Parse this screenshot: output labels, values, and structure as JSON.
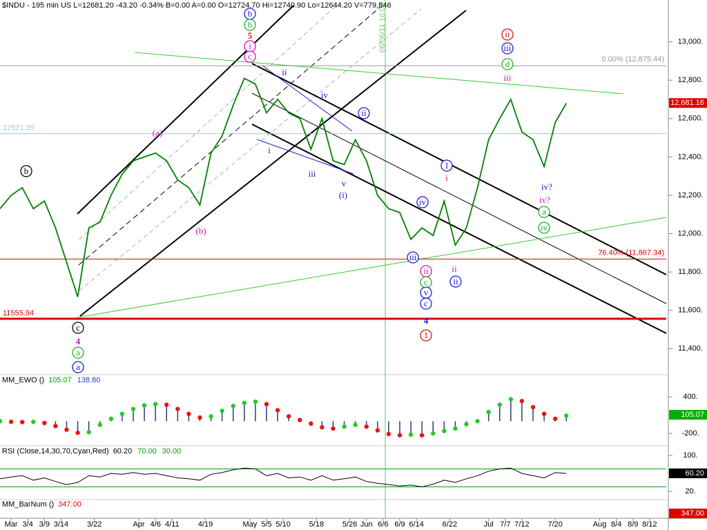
{
  "header": "$INDU - 195 min  US  L=12681.20  -43.20  -0.34%  B=0.00  A=0.00  O=12724.70  Hi=12740.90  Lo=12644.20  V=779,846",
  "chart_data": [
    {
      "type": "line",
      "color": "#008000",
      "x": [
        0,
        2,
        4,
        6,
        8,
        10,
        12,
        14,
        16,
        18,
        20,
        22,
        24,
        26,
        28,
        30,
        32,
        34,
        36,
        38,
        40,
        42,
        44,
        46,
        48,
        50,
        52,
        54,
        56,
        58,
        60,
        62,
        64,
        66,
        68,
        70,
        72,
        74,
        76,
        78,
        80,
        82,
        84,
        86,
        88,
        90,
        92,
        94,
        96,
        98,
        100,
        102
      ],
      "values": [
        12130,
        12200,
        12240,
        12130,
        12170,
        12030,
        11850,
        11670,
        12030,
        12060,
        12200,
        12310,
        12380,
        12400,
        12420,
        12380,
        12280,
        12240,
        12150,
        12420,
        12510,
        12670,
        12810,
        12780,
        12630,
        12700,
        12630,
        12600,
        12440,
        12600,
        12380,
        12360,
        12490,
        12380,
        12200,
        12130,
        12110,
        11970,
        12030,
        11990,
        12170,
        11940,
        12030,
        12240,
        12490,
        12600,
        12700,
        12530,
        12490,
        12350,
        12580,
        12680
      ],
      "xlim": [
        0,
        120
      ],
      "ylim": [
        11275,
        13204
      ],
      "xticks": [
        {
          "value": 2,
          "label": "Mar"
        },
        {
          "value": 5,
          "label": "3/4"
        },
        {
          "value": 8,
          "label": "3/9"
        },
        {
          "value": 11,
          "label": "3/14"
        },
        {
          "value": 17,
          "label": "3/22"
        },
        {
          "value": 25,
          "label": "Apr"
        },
        {
          "value": 28,
          "label": "4/6"
        },
        {
          "value": 31,
          "label": "4/11"
        },
        {
          "value": 37,
          "label": "4/19"
        },
        {
          "value": 45,
          "label": "May"
        },
        {
          "value": 48,
          "label": "5/5"
        },
        {
          "value": 51,
          "label": "5/10"
        },
        {
          "value": 57,
          "label": "5/18"
        },
        {
          "value": 63,
          "label": "5/26"
        },
        {
          "value": 66,
          "label": "Jun"
        },
        {
          "value": 69,
          "label": "6/6"
        },
        {
          "value": 72,
          "label": "6/9"
        },
        {
          "value": 75,
          "label": "6/14"
        },
        {
          "value": 81,
          "label": "6/22"
        },
        {
          "value": 88,
          "label": "Jul"
        },
        {
          "value": 91,
          "label": "7/7"
        },
        {
          "value": 94,
          "label": "7/12"
        },
        {
          "value": 100,
          "label": "7/20"
        },
        {
          "value": 108,
          "label": "Aug"
        },
        {
          "value": 111,
          "label": "8/4"
        },
        {
          "value": 114,
          "label": "8/9"
        },
        {
          "value": 117,
          "label": "8/12"
        }
      ],
      "yticks": [
        {
          "value": 11400,
          "label": "11,400."
        },
        {
          "value": 11600,
          "label": "11,600."
        },
        {
          "value": 11800,
          "label": "11,800."
        },
        {
          "value": 12000,
          "label": "12,000."
        },
        {
          "value": 12200,
          "label": "12,200."
        },
        {
          "value": 12400,
          "label": "12,400."
        },
        {
          "value": 12600,
          "label": "12,600."
        },
        {
          "value": 12800,
          "label": "12,800."
        },
        {
          "value": 13000,
          "label": "13,000."
        }
      ],
      "levels": [
        {
          "value": 12875.44,
          "label": "0.00% (12,875.44)",
          "color": "#999999",
          "side": "right",
          "style": "thin"
        },
        {
          "value": 11867.34,
          "label": "76.40% (11,867.34)",
          "color": "#e00000",
          "side": "right",
          "style": "thin"
        },
        {
          "value": 12521.35,
          "label": "12521.35",
          "color": "#9fc5e8",
          "side": "left",
          "style": "thin"
        },
        {
          "value": 11555.94,
          "label": "11555.94",
          "color": "#e00000",
          "side": "left",
          "style": "thick"
        }
      ],
      "last_label": {
        "value": 12681.16,
        "label": "12,681.16",
        "color": "#e00000"
      },
      "marker_label": "06/06/11 10:00",
      "annotations": [
        "b",
        "b",
        "5",
        "i",
        "c",
        "(a)",
        "b",
        "(b)",
        "ii",
        "iv",
        "i",
        "iii",
        "v",
        "(i)",
        "ii",
        "c",
        "4",
        "a",
        "a",
        "iv",
        "iii",
        "ii",
        "c",
        "v",
        "c",
        "4",
        "1",
        "1",
        "i",
        "ii",
        "ii",
        "ii",
        "iii",
        "d",
        "iii",
        "iv?",
        "iv?",
        "a",
        "iv"
      ]
    },
    {
      "type": "bar",
      "title": "MM_EWO ()",
      "bar_color": "#2a3a80",
      "up_color": "#22cc22",
      "down_color": "#ee1111",
      "x": [
        0,
        2,
        4,
        6,
        8,
        10,
        12,
        14,
        16,
        18,
        20,
        22,
        24,
        26,
        28,
        30,
        32,
        34,
        36,
        38,
        40,
        42,
        44,
        46,
        48,
        50,
        52,
        54,
        56,
        58,
        60,
        62,
        64,
        66,
        68,
        70,
        72,
        74,
        76,
        78,
        80,
        82,
        84,
        86,
        88,
        90,
        92,
        94,
        96,
        98,
        100,
        102
      ],
      "values": [
        0,
        -10,
        -15,
        -10,
        -30,
        -80,
        -140,
        -190,
        -180,
        -60,
        40,
        120,
        200,
        260,
        280,
        270,
        200,
        120,
        60,
        80,
        170,
        250,
        300,
        320,
        280,
        180,
        80,
        20,
        -40,
        -100,
        -120,
        -90,
        -60,
        -90,
        -150,
        -210,
        -230,
        -220,
        -230,
        -200,
        -160,
        -120,
        -50,
        0,
        150,
        270,
        360,
        330,
        230,
        120,
        40,
        90
      ],
      "xlim": [
        0,
        120
      ],
      "ylim": [
        -392,
        739
      ],
      "yticks": [
        {
          "value": -200,
          "label": "-200."
        },
        {
          "value": 400,
          "label": "400."
        }
      ],
      "readouts": [
        {
          "label": "105.07",
          "color": "#00a000"
        },
        {
          "label": "138.80",
          "color": "#2040c0"
        }
      ],
      "last_label": {
        "value": 105.07,
        "label": "105.07",
        "color": "#00b000"
      }
    },
    {
      "type": "line",
      "title": "RSI (Close,14,30,70,Cyan,Red)",
      "color": "#000000",
      "x": [
        0,
        2,
        4,
        6,
        8,
        10,
        12,
        14,
        16,
        18,
        20,
        22,
        24,
        26,
        28,
        30,
        32,
        34,
        36,
        38,
        40,
        42,
        44,
        46,
        48,
        50,
        52,
        54,
        56,
        58,
        60,
        62,
        64,
        66,
        68,
        70,
        72,
        74,
        76,
        78,
        80,
        82,
        84,
        86,
        88,
        90,
        92,
        94,
        96,
        98,
        100,
        102
      ],
      "values": [
        48,
        52,
        55,
        45,
        50,
        42,
        35,
        40,
        55,
        52,
        60,
        58,
        62,
        58,
        60,
        55,
        50,
        48,
        45,
        58,
        62,
        68,
        72,
        70,
        55,
        60,
        50,
        52,
        45,
        55,
        45,
        48,
        52,
        42,
        38,
        35,
        32,
        34,
        30,
        36,
        45,
        40,
        48,
        55,
        65,
        70,
        72,
        60,
        55,
        50,
        62,
        60
      ],
      "xlim": [
        0,
        120
      ],
      "ylim": [
        4.6,
        118.5
      ],
      "yticks": [
        {
          "value": 20,
          "label": "20."
        },
        {
          "value": 100,
          "label": "100."
        }
      ],
      "levels": [
        {
          "value": 70,
          "color": "#00a000"
        },
        {
          "value": 30,
          "color": "#00a000"
        }
      ],
      "readouts": [
        {
          "label": "60.20",
          "color": "#000000"
        },
        {
          "label": "70.00",
          "color": "#00a000"
        },
        {
          "label": "30.00",
          "color": "#00a000"
        }
      ],
      "last_label": {
        "value": 60.2,
        "label": "60.20",
        "color": "#000000"
      }
    },
    {
      "type": "indicator",
      "title": "MM_BarNum ()",
      "readouts": [
        {
          "label": "347.00",
          "color": "#e00000"
        }
      ],
      "last_label": {
        "label": "347.00",
        "color": "#e00000"
      }
    }
  ]
}
